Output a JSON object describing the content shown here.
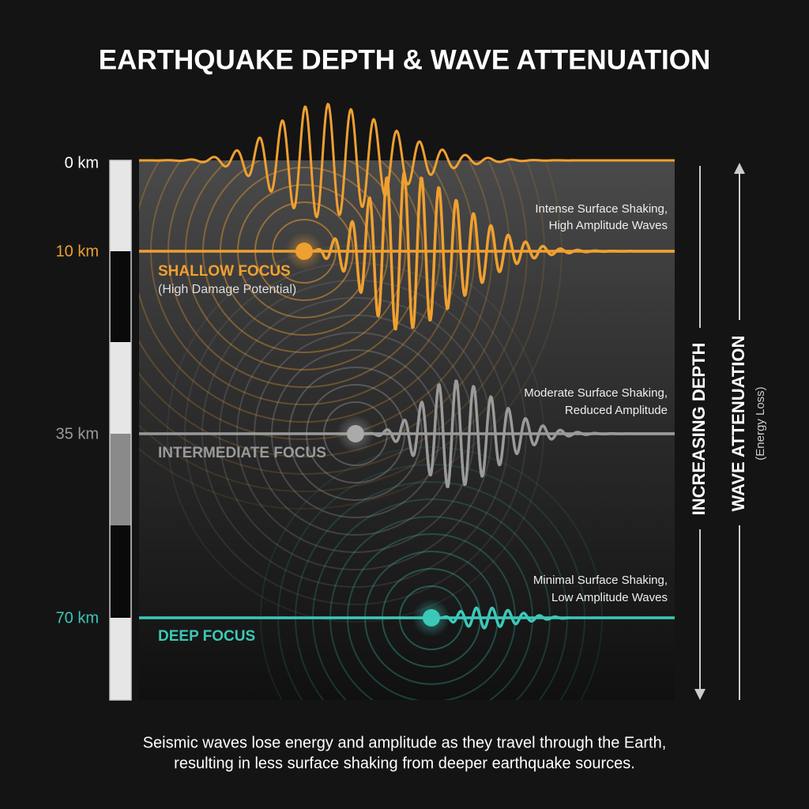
{
  "title": "EARTHQUAKE DEPTH & WAVE ATTENUATION",
  "depth_scale": {
    "labels": [
      "0 km",
      "10 km",
      "35 km",
      "70 km"
    ]
  },
  "foci": [
    {
      "label": "SHALLOW FOCUS",
      "sublabel": "(High Damage Potential)",
      "note": [
        "Intense Surface Shaking,",
        "High Amplitude Waves"
      ]
    },
    {
      "label": "INTERMEDIATE FOCUS",
      "note": [
        "Moderate Surface Shaking,",
        "Reduced Amplitude"
      ]
    },
    {
      "label": "DEEP FOCUS",
      "note": [
        "Minimal Surface Shaking,",
        "Low Amplitude Waves"
      ]
    }
  ],
  "axes": {
    "depth": "INCREASING DEPTH",
    "attenuation": "WAVE ATTENUATION",
    "attenuation_note": "(Energy Loss)"
  },
  "caption": [
    "Seismic waves lose energy and amplitude as they travel through the Earth,",
    "resulting in less surface shaking from deeper earthquake sources."
  ]
}
